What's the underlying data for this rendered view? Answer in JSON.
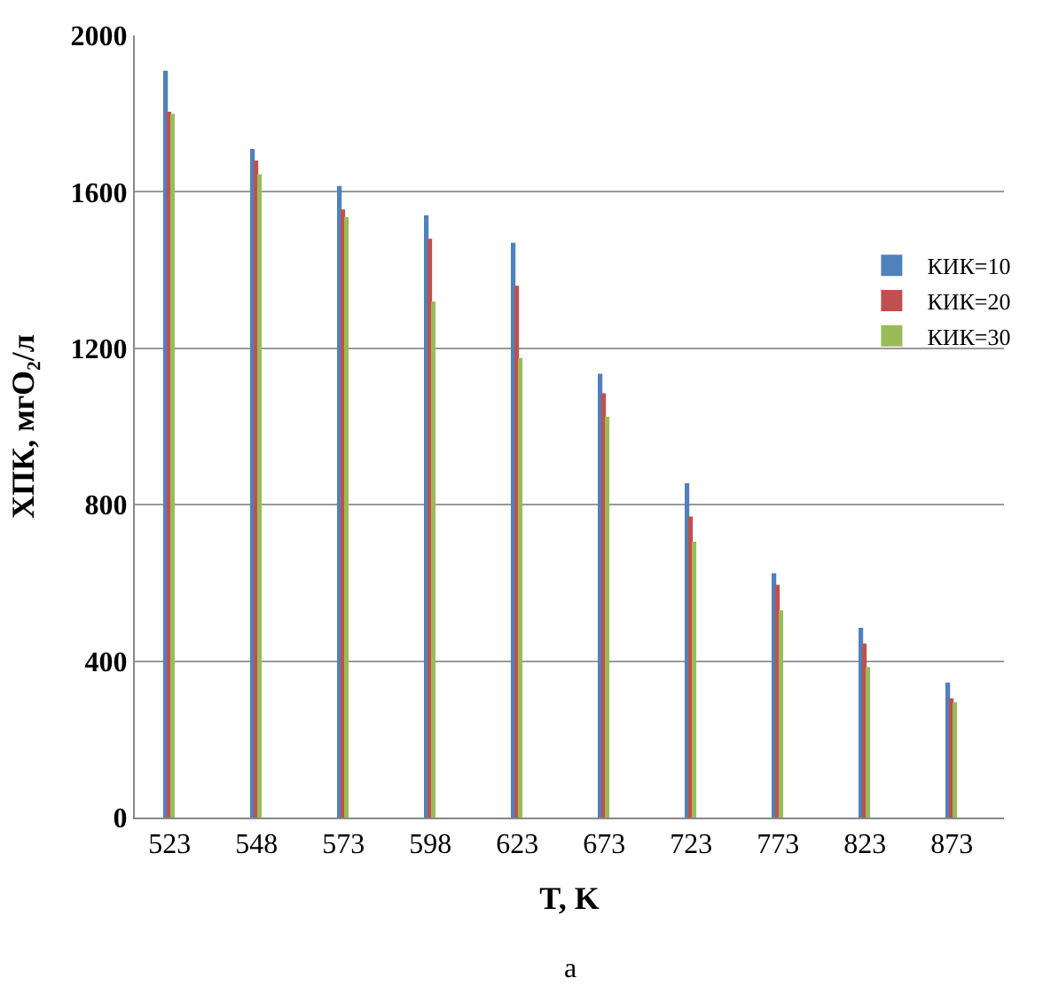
{
  "chart_data": {
    "type": "bar",
    "xlabel": "T, K",
    "ylabel": "ХПК, мгО₂/л",
    "categories": [
      "523",
      "548",
      "573",
      "598",
      "623",
      "673",
      "723",
      "773",
      "823",
      "873"
    ],
    "series": [
      {
        "name": "КИК=10",
        "color": "#4f81bd",
        "values": [
          1910,
          1710,
          1615,
          1540,
          1470,
          1135,
          855,
          625,
          485,
          345
        ]
      },
      {
        "name": "КИК=20",
        "color": "#c0504d",
        "values": [
          1805,
          1680,
          1555,
          1480,
          1360,
          1085,
          770,
          595,
          445,
          305
        ]
      },
      {
        "name": "КИК=30",
        "color": "#9bbb59",
        "values": [
          1800,
          1645,
          1535,
          1320,
          1175,
          1025,
          705,
          530,
          385,
          295
        ]
      }
    ],
    "ylim": [
      0,
      2000
    ],
    "yticks": [
      0,
      400,
      800,
      1200,
      1600,
      2000
    ],
    "grid": "y",
    "legend": "right",
    "annotations": [
      "а"
    ]
  }
}
